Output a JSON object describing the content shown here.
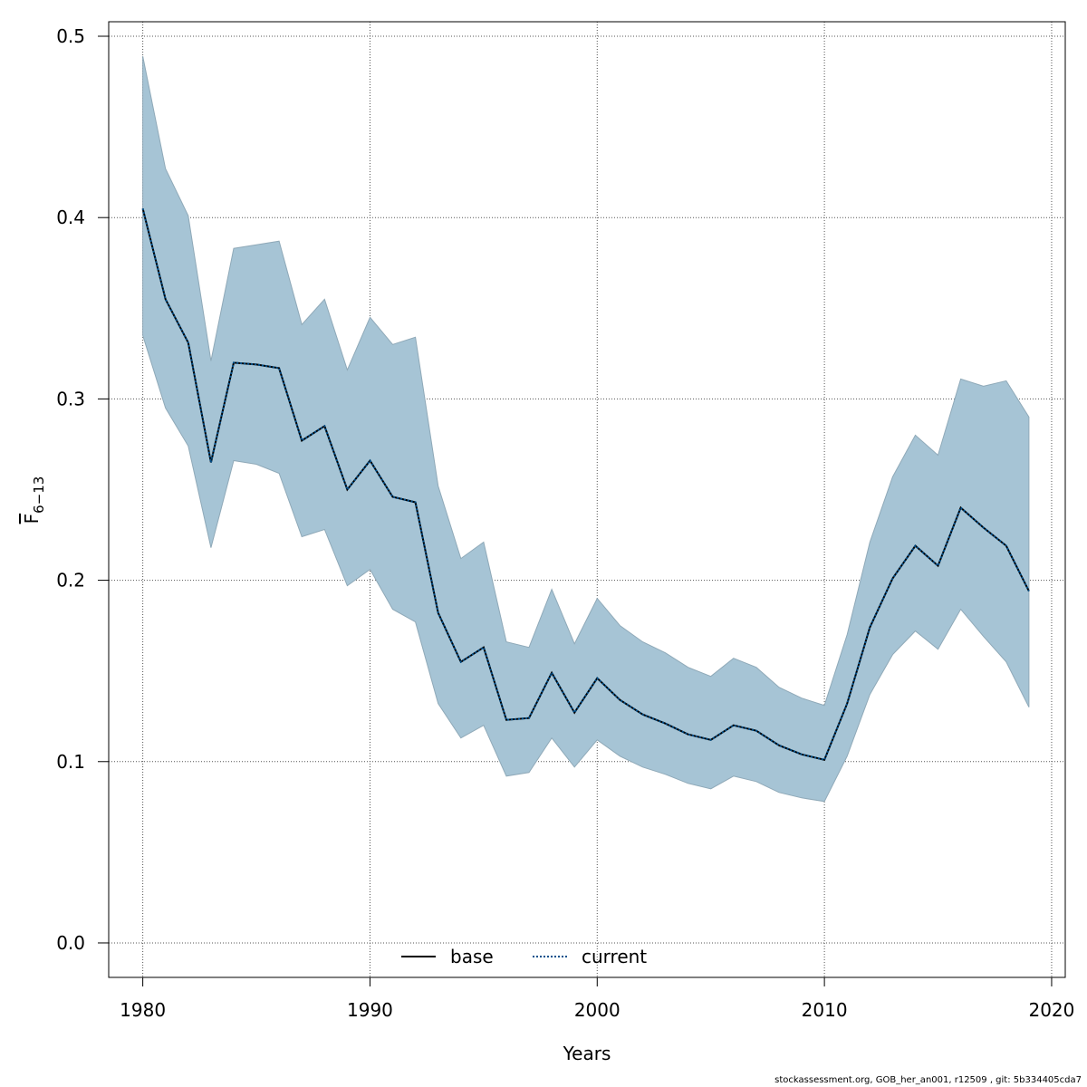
{
  "chart_data": {
    "type": "line",
    "xlabel": "Years",
    "ylabel": {
      "main": "F",
      "sub": "6−13"
    },
    "xlim": [
      1978.5,
      2020.6
    ],
    "ylim": [
      -0.019,
      0.508
    ],
    "x_ticks": [
      "1980",
      "1990",
      "2000",
      "2010",
      "2020"
    ],
    "y_ticks": [
      "0.0",
      "0.1",
      "0.2",
      "0.3",
      "0.4",
      "0.5"
    ],
    "grid": true,
    "band_color": "#a6c4d5",
    "band_edge_color": "#8fa9b8",
    "x": [
      1980,
      1981,
      1982,
      1983,
      1984,
      1985,
      1986,
      1987,
      1988,
      1989,
      1990,
      1991,
      1992,
      1993,
      1994,
      1995,
      1996,
      1997,
      1998,
      1999,
      2000,
      2001,
      2002,
      2003,
      2004,
      2005,
      2006,
      2007,
      2008,
      2009,
      2010,
      2011,
      2012,
      2013,
      2014,
      2015,
      2016,
      2017,
      2018,
      2019
    ],
    "upper": [
      0.489,
      0.427,
      0.401,
      0.321,
      0.383,
      0.385,
      0.387,
      0.341,
      0.355,
      0.316,
      0.345,
      0.33,
      0.334,
      0.252,
      0.212,
      0.221,
      0.166,
      0.163,
      0.195,
      0.165,
      0.19,
      0.175,
      0.166,
      0.16,
      0.152,
      0.147,
      0.157,
      0.152,
      0.141,
      0.135,
      0.131,
      0.17,
      0.221,
      0.257,
      0.28,
      0.269,
      0.311,
      0.307,
      0.31,
      0.29
    ],
    "lower": [
      0.335,
      0.295,
      0.274,
      0.218,
      0.266,
      0.264,
      0.259,
      0.224,
      0.228,
      0.197,
      0.206,
      0.184,
      0.177,
      0.132,
      0.113,
      0.12,
      0.092,
      0.094,
      0.113,
      0.097,
      0.112,
      0.103,
      0.097,
      0.093,
      0.088,
      0.085,
      0.092,
      0.089,
      0.083,
      0.08,
      0.078,
      0.103,
      0.137,
      0.159,
      0.172,
      0.162,
      0.184,
      0.169,
      0.155,
      0.13
    ],
    "series": [
      {
        "name": "base",
        "color": "#000000",
        "dash": "solid",
        "values": [
          0.405,
          0.355,
          0.331,
          0.265,
          0.32,
          0.319,
          0.317,
          0.277,
          0.285,
          0.25,
          0.266,
          0.246,
          0.243,
          0.182,
          0.155,
          0.163,
          0.123,
          0.124,
          0.149,
          0.127,
          0.146,
          0.134,
          0.126,
          0.121,
          0.115,
          0.112,
          0.12,
          0.117,
          0.109,
          0.104,
          0.101,
          0.132,
          0.174,
          0.201,
          0.219,
          0.208,
          0.24,
          0.229,
          0.219,
          0.194
        ]
      },
      {
        "name": "current",
        "color": "#00508c",
        "dash": "dotted",
        "values": [
          0.405,
          0.355,
          0.331,
          0.265,
          0.32,
          0.319,
          0.317,
          0.277,
          0.285,
          0.25,
          0.266,
          0.246,
          0.243,
          0.182,
          0.155,
          0.163,
          0.123,
          0.124,
          0.149,
          0.127,
          0.146,
          0.134,
          0.126,
          0.121,
          0.115,
          0.112,
          0.12,
          0.117,
          0.109,
          0.104,
          0.101,
          0.132,
          0.174,
          0.201,
          0.219,
          0.208,
          0.24,
          0.229,
          0.219,
          0.194
        ]
      }
    ],
    "legend": {
      "position": "bottom-center",
      "entries": [
        "base",
        "current"
      ]
    }
  },
  "footer": "stockassessment.org, GOB_her_an001, r12509 , git: 5b334405cda7"
}
